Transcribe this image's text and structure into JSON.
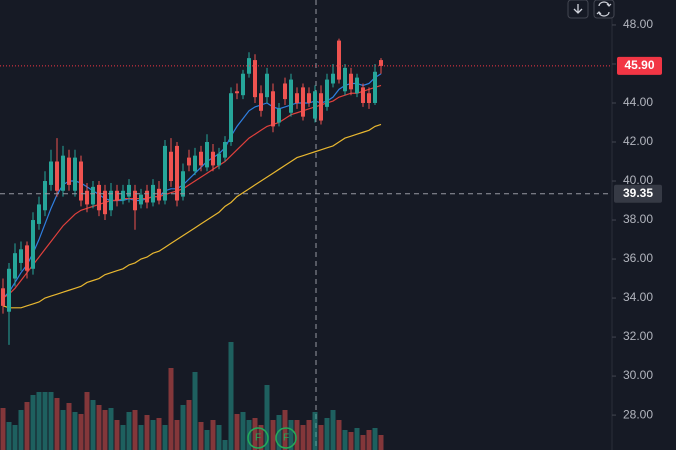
{
  "chart_data": {
    "type": "candlestick",
    "ylim": [
      26.21,
      49.28
    ],
    "yticks": [
      {
        "value": 28,
        "label": "28.00"
      },
      {
        "value": 30,
        "label": "30.00"
      },
      {
        "value": 32,
        "label": "32.00"
      },
      {
        "value": 34,
        "label": "34.00"
      },
      {
        "value": 36,
        "label": "36.00"
      },
      {
        "value": 38,
        "label": "38.00"
      },
      {
        "value": 40,
        "label": "40.00"
      },
      {
        "value": 42,
        "label": "42.00"
      },
      {
        "value": 44,
        "label": "44.00"
      },
      {
        "value": 46,
        "label": "46.00"
      },
      {
        "value": 48,
        "label": "48.00"
      }
    ],
    "up_color": "#26a69a",
    "down_color": "#ef5350",
    "open": [
      34.5,
      33.3,
      35.0,
      35.8,
      36.7,
      35.5,
      37.8,
      38.5,
      39.8,
      41.0,
      39.5,
      41.2,
      39.5,
      41.0,
      39.5,
      38.8,
      39.8,
      39.5,
      38.5,
      39.5,
      39.0,
      39.2,
      39.5,
      38.8,
      39.5,
      38.9,
      39.6,
      39.0,
      41.5,
      41.8,
      39.2,
      41.2,
      40.5,
      41.5,
      40.7,
      41.5,
      40.8,
      41.2,
      42.0,
      44.6,
      44.4,
      45.5,
      46.2,
      44.5,
      44.3,
      44.6,
      43.0,
      45.0,
      43.5,
      44.5,
      44.8,
      44.5,
      43.2,
      44.5,
      43.8,
      45.0,
      47.2,
      44.6,
      45.5,
      44.5,
      44.8,
      44.5,
      44.0,
      46.2
    ],
    "high": [
      35.0,
      35.8,
      36.8,
      36.9,
      36.9,
      38.4,
      39.2,
      40.5,
      41.6,
      42.2,
      41.8,
      41.6,
      41.6,
      41.3,
      39.9,
      40.0,
      40.0,
      39.8,
      39.9,
      39.8,
      39.8,
      40.1,
      39.8,
      39.6,
      39.8,
      40.1,
      40.0,
      42.1,
      42.2,
      42.0,
      40.9,
      41.6,
      41.7,
      41.8,
      42.4,
      41.9,
      41.7,
      42.3,
      44.8,
      45.0,
      45.7,
      46.6,
      46.5,
      44.9,
      45.8,
      45.0,
      44.0,
      45.3,
      45.5,
      44.8,
      45.0,
      44.8,
      44.9,
      44.9,
      45.5,
      46.0,
      47.3,
      46.0,
      45.8,
      45.5,
      45.0,
      44.8,
      46.0,
      46.3
    ],
    "low": [
      33.2,
      31.6,
      34.6,
      35.4,
      35.0,
      35.2,
      37.5,
      38.2,
      39.5,
      39.2,
      39.2,
      39.5,
      39.2,
      38.7,
      38.4,
      38.6,
      38.2,
      38.0,
      38.2,
      38.7,
      38.8,
      38.9,
      37.5,
      38.6,
      38.6,
      38.7,
      38.8,
      38.8,
      39.7,
      38.7,
      39.0,
      40.5,
      40.3,
      40.5,
      40.5,
      40.5,
      40.6,
      41.0,
      41.8,
      44.2,
      44.2,
      45.3,
      44.0,
      43.3,
      44.0,
      42.5,
      42.8,
      43.9,
      43.3,
      43.7,
      43.1,
      43.8,
      43.0,
      42.9,
      43.6,
      44.8,
      45.0,
      44.4,
      44.4,
      44.3,
      43.8,
      43.7,
      43.9,
      45.5
    ],
    "close": [
      33.6,
      35.5,
      36.3,
      36.5,
      35.4,
      38.0,
      38.8,
      40.0,
      41.0,
      39.5,
      41.3,
      39.8,
      41.2,
      39.0,
      38.8,
      39.7,
      38.5,
      38.3,
      39.5,
      39.0,
      39.5,
      39.8,
      38.5,
      39.3,
      38.9,
      39.8,
      39.0,
      41.8,
      40.0,
      39.0,
      40.5,
      40.8,
      41.3,
      40.8,
      42.0,
      40.8,
      41.4,
      42.0,
      44.5,
      44.5,
      45.5,
      46.3,
      44.3,
      43.6,
      45.5,
      42.8,
      43.7,
      44.2,
      45.2,
      44.0,
      43.3,
      44.0,
      44.6,
      43.1,
      45.2,
      45.5,
      45.2,
      45.8,
      44.7,
      45.3,
      44.0,
      44.0,
      45.6,
      45.9
    ],
    "series": [
      {
        "color": "#2f7fe0",
        "values": [
          34.0,
          34.3,
          34.8,
          35.3,
          35.7,
          36.3,
          37.0,
          37.8,
          38.6,
          39.3,
          39.8,
          40.0,
          40.0,
          39.9,
          39.7,
          39.5,
          39.3,
          39.1,
          39.0,
          39.0,
          39.0,
          39.1,
          39.0,
          39.0,
          39.1,
          39.2,
          39.2,
          39.5,
          39.6,
          39.6,
          39.8,
          40.1,
          40.4,
          40.7,
          41.0,
          41.2,
          41.4,
          41.7,
          42.3,
          42.8,
          43.2,
          43.6,
          43.8,
          43.9,
          44.0,
          43.8,
          43.7,
          43.8,
          43.9,
          44.0,
          44.0,
          44.0,
          44.1,
          44.0,
          44.1,
          44.3,
          44.7,
          44.9,
          45.0,
          45.0,
          44.9,
          45.0,
          45.3,
          45.5
        ]
      },
      {
        "color": "#e0403c",
        "values": [
          34.0,
          34.2,
          34.5,
          34.9,
          35.3,
          35.7,
          36.1,
          36.5,
          36.9,
          37.3,
          37.7,
          38.0,
          38.3,
          38.5,
          38.6,
          38.7,
          38.8,
          38.9,
          39.0,
          39.0,
          39.1,
          39.1,
          39.1,
          39.1,
          39.1,
          39.2,
          39.2,
          39.3,
          39.4,
          39.5,
          39.6,
          39.8,
          40.0,
          40.2,
          40.4,
          40.6,
          40.8,
          41.0,
          41.3,
          41.6,
          41.9,
          42.2,
          42.4,
          42.6,
          42.8,
          42.9,
          43.0,
          43.2,
          43.4,
          43.5,
          43.6,
          43.7,
          43.8,
          43.9,
          44.0,
          44.1,
          44.3,
          44.4,
          44.5,
          44.5,
          44.6,
          44.7,
          44.8,
          44.9
        ]
      },
      {
        "color": "#e8b730",
        "values": [
          33.6,
          33.5,
          33.5,
          33.5,
          33.6,
          33.7,
          33.8,
          34.0,
          34.1,
          34.2,
          34.3,
          34.4,
          34.5,
          34.6,
          34.8,
          34.9,
          35.0,
          35.2,
          35.3,
          35.4,
          35.5,
          35.7,
          35.8,
          36.0,
          36.1,
          36.3,
          36.4,
          36.6,
          36.8,
          37.0,
          37.2,
          37.4,
          37.6,
          37.8,
          38.0,
          38.2,
          38.4,
          38.7,
          38.9,
          39.2,
          39.4,
          39.6,
          39.8,
          40.0,
          40.2,
          40.4,
          40.6,
          40.8,
          41.0,
          41.2,
          41.3,
          41.4,
          41.5,
          41.6,
          41.7,
          41.8,
          42.0,
          42.2,
          42.3,
          42.4,
          42.5,
          42.6,
          42.8,
          42.9
        ]
      }
    ],
    "volume": {
      "ylim": [
        0,
        450
      ],
      "values": [
        42,
        28,
        25,
        40,
        48,
        55,
        58,
        58,
        58,
        52,
        40,
        47,
        38,
        36,
        58,
        50,
        45,
        40,
        42,
        30,
        25,
        38,
        40,
        25,
        35,
        30,
        32,
        25,
        82,
        30,
        45,
        50,
        78,
        28,
        20,
        30,
        25,
        10,
        108,
        36,
        38,
        30,
        32,
        25,
        65,
        30,
        35,
        40,
        30,
        30,
        25,
        30,
        38,
        25,
        32,
        40,
        30,
        20,
        18,
        22,
        15,
        20,
        22,
        15
      ]
    },
    "markers": [
      "F",
      "F"
    ],
    "last_price": {
      "value": 45.9,
      "label": "45.90",
      "color": "#f23645"
    },
    "crosshair": {
      "value": 39.35,
      "label": "39.35"
    }
  }
}
